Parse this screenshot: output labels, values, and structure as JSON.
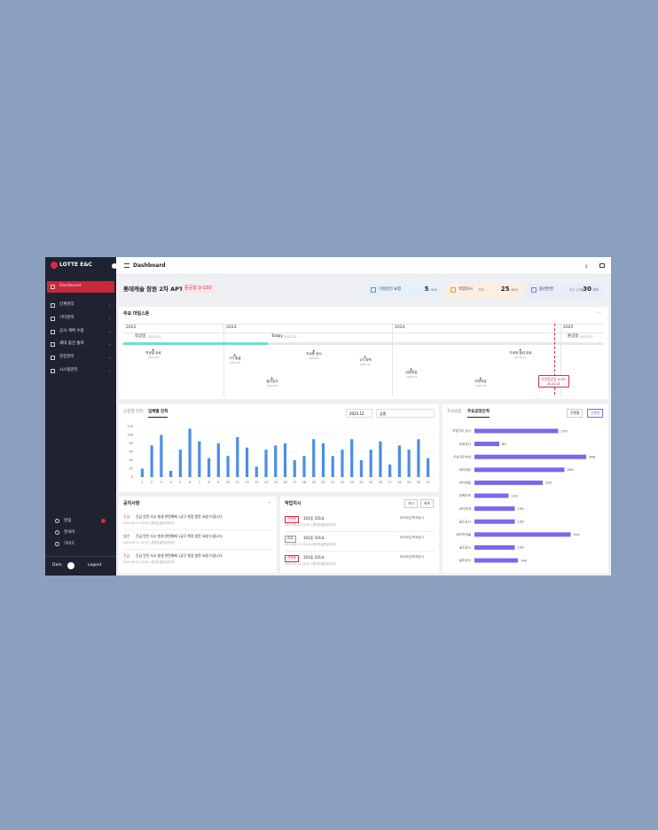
{
  "sidebar": {
    "logo": "LOTTE E&C",
    "menu": [
      "Dashboard",
      "단계관리",
      "기타관리",
      "공사 계획 수립",
      "세대 옵션 출력",
      "현장관리",
      "시스템관리"
    ],
    "bottom": [
      "알림",
      "한국어",
      "가이드"
    ],
    "theme": "Dark",
    "logout": "Logout"
  },
  "header": {
    "title": "Dashboard"
  },
  "project": {
    "name": "롯데캐슬 잠원 2차 APT",
    "badge": "준공일 D-150",
    "stats": [
      {
        "label": "기성승인 요청",
        "value": 5,
        "total": "/300"
      },
      {
        "label": "작업지시",
        "sub": "진행",
        "value": 25,
        "total": "/300"
      },
      {
        "label": "옵션변경",
        "sub": "최근 1개월",
        "value": 30,
        "total": "세대"
      }
    ]
  },
  "milestones": {
    "title": "주요 마일스톤",
    "years": [
      "2022",
      "2023",
      "2024",
      "2025"
    ],
    "start": {
      "label": "착공일",
      "date": "2022.01"
    },
    "today": {
      "label": "Today",
      "date": "2023.12"
    },
    "end": {
      "label": "준공일",
      "date": "2025.05"
    },
    "items": [
      {
        "label": "착공일 완료",
        "date": "2022.06"
      },
      {
        "label": "1차 철골",
        "date": "2023.03"
      },
      {
        "label": "골조공사",
        "date": "2023.06"
      },
      {
        "label": "지상층 공사",
        "date": "2023.07"
      },
      {
        "label": "1차 외벽",
        "date": "2023.11"
      },
      {
        "label": "내부마감",
        "date": "2024.03"
      },
      {
        "label": "외부마감",
        "date": "2024.08"
      },
      {
        "label": "가세대 점검 완료",
        "date": "24.10.15"
      }
    ],
    "alert": {
      "label": "사전점검일 D-65",
      "date": "24.12.21"
    }
  },
  "daily_chart": {
    "type": "bar",
    "tabs": [
      "공종별 진척",
      "업체별 진척"
    ],
    "month": "2023.12",
    "filter": "공종",
    "categories": [
      "1",
      "2",
      "3",
      "4",
      "5",
      "6",
      "7",
      "8",
      "9",
      "10",
      "11",
      "12",
      "13",
      "14",
      "15",
      "16",
      "17",
      "18",
      "19",
      "20",
      "21",
      "22",
      "23",
      "24",
      "25",
      "26",
      "27",
      "28",
      "29",
      "30",
      "31"
    ],
    "values": [
      20,
      75,
      100,
      15,
      65,
      115,
      85,
      45,
      80,
      50,
      95,
      70,
      25,
      65,
      75,
      80,
      40,
      50,
      90,
      80,
      50,
      65,
      90,
      40,
      65,
      85,
      30,
      75,
      65,
      90,
      45
    ],
    "color": "#4a8fe7",
    "ylim": [
      0,
      120
    ],
    "yticks": [
      0,
      20,
      40,
      60,
      80,
      100,
      120
    ]
  },
  "process_chart": {
    "type": "hbar",
    "tabs": [
      "주요일정",
      "주요공정진척"
    ],
    "buttons": [
      "진행률",
      "진행량"
    ],
    "categories": [
      "무방거주 공사",
      "무방공사",
      "주방거주부대",
      "바닥재부",
      "바닥재설",
      "외벽도포",
      "바닥착색",
      "골조공사",
      "바닥착색골",
      "골조공사",
      "골조공사"
    ],
    "values": [
      270,
      80,
      360,
      290,
      220,
      110,
      130,
      130,
      310,
      130,
      140
    ],
    "color": "#7b68ee",
    "xlim": [
      0,
      400
    ]
  },
  "notices": {
    "title": "공지사항",
    "items": [
      {
        "tag": "긴급",
        "text": "긴급 안전 사고 발생 관련해제 1공구 현장 방문 요청 드립니다.",
        "meta": "2023.09.11 13:00 | 롯데건설현장관리자"
      },
      {
        "tag": "일반",
        "text": "긴급 안전 사고 발생 관련해제 1공구 현장 방문 요청 드립니다.",
        "meta": "2023.09.11 13:00 | 롯데건설현장관리자"
      },
      {
        "tag": "긴급",
        "text": "긴급 안전 사고 발생 관련해제 1공구 현장 방문 요청 드립니다.",
        "meta": "2023.09.11 13:00 | 롯데건설현장관리자"
      }
    ]
  },
  "work_orders": {
    "title": "작업지시",
    "buttons": [
      "지시",
      "위위"
    ],
    "items": [
      {
        "status": "진행중",
        "unit": "101동 101호",
        "trade": "바닥마감/벽체공사",
        "meta": "2023.09.11 13:00 | 롯데건설현장관리자"
      },
      {
        "status": "완료",
        "unit": "101동 101호",
        "trade": "바닥마감/벽체공사",
        "meta": "2023.09.11 13:00 | 롯데건설현장관리자"
      },
      {
        "status": "진행중",
        "unit": "101동 101호",
        "trade": "바닥마감/벽체공사",
        "meta": "2023.09.11 13:00 | 롯데건설현장관리자"
      }
    ]
  }
}
